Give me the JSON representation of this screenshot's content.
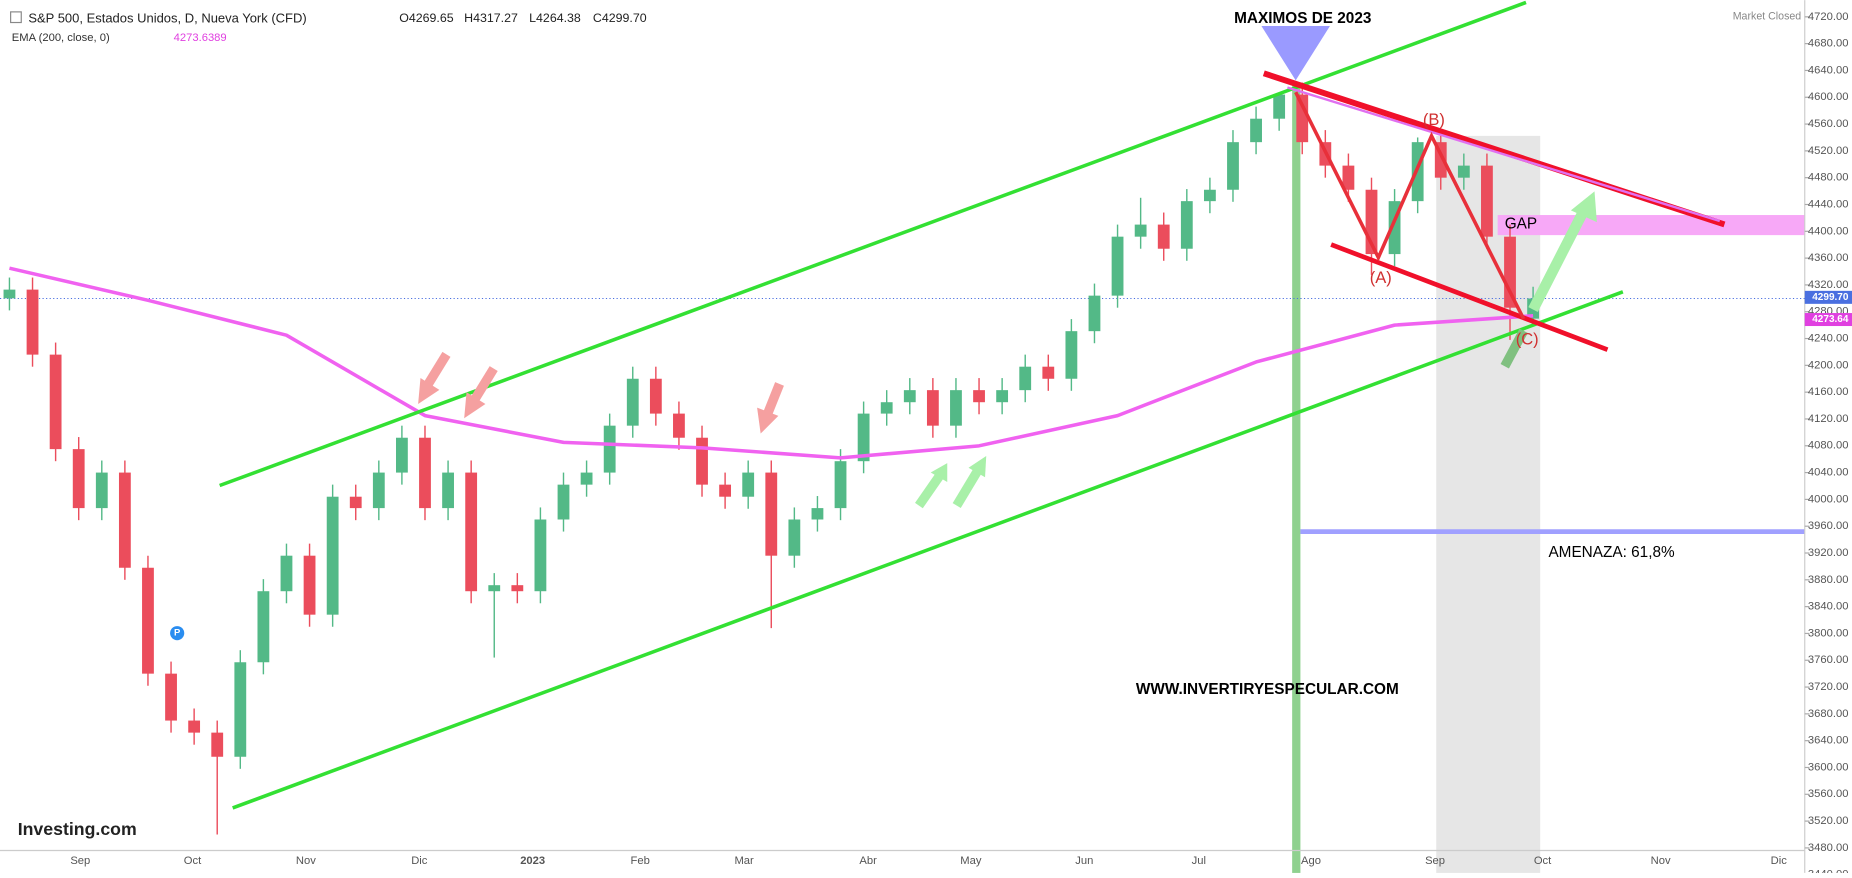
{
  "chart_data": {
    "type": "candlestick",
    "title": "S&P 500, Estados Unidos, D, Nueva York (CFD)",
    "header_ohlc": [
      "O4269.65",
      "H4317.27",
      "L4264.38",
      "C4299.70"
    ],
    "status": "Market Closed",
    "up_color": "#53b987",
    "down_color": "#eb4d5c",
    "open": [
      4300,
      4313,
      4216,
      4075,
      3987,
      4040,
      3898,
      3740,
      3670,
      3652,
      3616,
      3757,
      3863,
      3916,
      3828,
      4004,
      3987,
      4040,
      4092,
      3987,
      4040,
      3863,
      3872,
      3863,
      3970,
      4022,
      4040,
      4110,
      4180,
      4128,
      4092,
      4022,
      4004,
      4040,
      3916,
      3970,
      3987,
      4057,
      4128,
      4145,
      4163,
      4110,
      4163,
      4145,
      4163,
      4198,
      4180,
      4251,
      4304,
      4392,
      4410,
      4374,
      4445,
      4462,
      4533,
      4568,
      4604,
      4533,
      4498,
      4462,
      4366,
      4445,
      4533,
      4480,
      4498,
      4392,
      4269.65
    ],
    "high": [
      4331,
      4331,
      4234,
      4093,
      4058,
      4058,
      3916,
      3758,
      3688,
      3670,
      3775,
      3881,
      3934,
      3934,
      4022,
      4022,
      4058,
      4110,
      4110,
      4058,
      4058,
      3890,
      3890,
      3988,
      4040,
      4058,
      4128,
      4198,
      4198,
      4146,
      4110,
      4040,
      4058,
      4058,
      3988,
      4005,
      4075,
      4146,
      4163,
      4181,
      4181,
      4181,
      4181,
      4181,
      4216,
      4216,
      4269,
      4322,
      4410,
      4450,
      4428,
      4463,
      4480,
      4551,
      4586,
      4607,
      4622,
      4551,
      4516,
      4480,
      4463,
      4540,
      4551,
      4516,
      4516,
      4410,
      4317.27
    ],
    "low": [
      4282,
      4198,
      4057,
      3969,
      3969,
      3880,
      3722,
      3652,
      3634,
      3500,
      3598,
      3739,
      3845,
      3810,
      3810,
      3969,
      3969,
      4022,
      3969,
      3969,
      3845,
      3764,
      3845,
      3845,
      3952,
      4004,
      4022,
      4092,
      4110,
      4074,
      4004,
      3986,
      3986,
      3808,
      3898,
      3952,
      3969,
      4039,
      4110,
      4127,
      4092,
      4092,
      4127,
      4127,
      4145,
      4162,
      4162,
      4233,
      4286,
      4374,
      4356,
      4356,
      4427,
      4444,
      4515,
      4550,
      4515,
      4480,
      4444,
      4335,
      4348,
      4427,
      4462,
      4462,
      4374,
      4238,
      4264.38
    ],
    "close": [
      4313,
      4216,
      4075,
      3987,
      4040,
      3898,
      3740,
      3670,
      3652,
      3616,
      3757,
      3863,
      3916,
      3828,
      4004,
      3987,
      4040,
      4092,
      3987,
      4040,
      3863,
      3872,
      3863,
      3970,
      4022,
      4040,
      4110,
      4180,
      4128,
      4092,
      4022,
      4004,
      4040,
      3916,
      3970,
      3987,
      4057,
      4128,
      4145,
      4163,
      4110,
      4163,
      4145,
      4163,
      4198,
      4180,
      4251,
      4304,
      4392,
      4410,
      4374,
      4445,
      4462,
      4533,
      4568,
      4604,
      4533,
      4498,
      4462,
      4366,
      4445,
      4533,
      4480,
      4498,
      4392,
      4286,
      4299.7
    ],
    "ema": {
      "name": "EMA (200, close, 0)",
      "last_label": "4273.6389",
      "color": "#f062f0",
      "values": [
        4345,
        4297,
        4245,
        4125,
        4085,
        4077,
        4062,
        4080,
        4125,
        4205,
        4260,
        4274
      ]
    },
    "price_tags": [
      {
        "value": 4299.7,
        "label": "4299.70",
        "color": "#4a6fe0"
      },
      {
        "value": 4273.64,
        "label": "4273.64",
        "color": "#e040e0"
      }
    ],
    "x_axis_labels": [
      "Sep",
      "Oct",
      "Nov",
      "Dic",
      "2023",
      "Feb",
      "Mar",
      "Abr",
      "May",
      "Jun",
      "Jul",
      "Ago",
      "Sep",
      "Oct",
      "Nov",
      "Dic"
    ],
    "ylim": [
      3418,
      4745
    ],
    "yticks": [
      {
        "value": 3440,
        "label": "3440.00"
      },
      {
        "value": 3480,
        "label": "3480.00"
      },
      {
        "value": 3520,
        "label": "3520.00"
      },
      {
        "value": 3560,
        "label": "3560.00"
      },
      {
        "value": 3600,
        "label": "3600.00"
      },
      {
        "value": 3640,
        "label": "3640.00"
      },
      {
        "value": 3680,
        "label": "3680.00"
      },
      {
        "value": 3720,
        "label": "3720.00"
      },
      {
        "value": 3760,
        "label": "3760.00"
      },
      {
        "value": 3800,
        "label": "3800.00"
      },
      {
        "value": 3840,
        "label": "3840.00"
      },
      {
        "value": 3880,
        "label": "3880.00"
      },
      {
        "value": 3920,
        "label": "3920.00"
      },
      {
        "value": 3960,
        "label": "3960.00"
      },
      {
        "value": 4000,
        "label": "4000.00"
      },
      {
        "value": 4040,
        "label": "4040.00"
      },
      {
        "value": 4080,
        "label": "4080.00"
      },
      {
        "value": 4120,
        "label": "4120.00"
      },
      {
        "value": 4160,
        "label": "4160.00"
      },
      {
        "value": 4200,
        "label": "4200.00"
      },
      {
        "value": 4240,
        "label": "4240.00"
      },
      {
        "value": 4280,
        "label": "4280.00"
      },
      {
        "value": 4320,
        "label": "4320.00"
      },
      {
        "value": 4360,
        "label": "4360.00"
      },
      {
        "value": 4400,
        "label": "4400.00"
      },
      {
        "value": 4440,
        "label": "4440.00"
      },
      {
        "value": 4480,
        "label": "4480.00"
      },
      {
        "value": 4520,
        "label": "4520.00"
      },
      {
        "value": 4560,
        "label": "4560.00"
      },
      {
        "value": 4600,
        "label": "4600.00"
      },
      {
        "value": 4640,
        "label": "4640.00"
      },
      {
        "value": 4680,
        "label": "4680.00"
      },
      {
        "value": 4720,
        "label": "4720.00"
      }
    ],
    "annotations": {
      "peak": "MAXIMOS DE 2023",
      "a": "(A)",
      "b": "(B)",
      "c": "(C)",
      "gap": "GAP",
      "threat": "AMENAZA: 61,8%",
      "website": "WWW.INVERTIRYESPECULAR.COM",
      "logo": "Investing.com",
      "marker": "P"
    }
  }
}
